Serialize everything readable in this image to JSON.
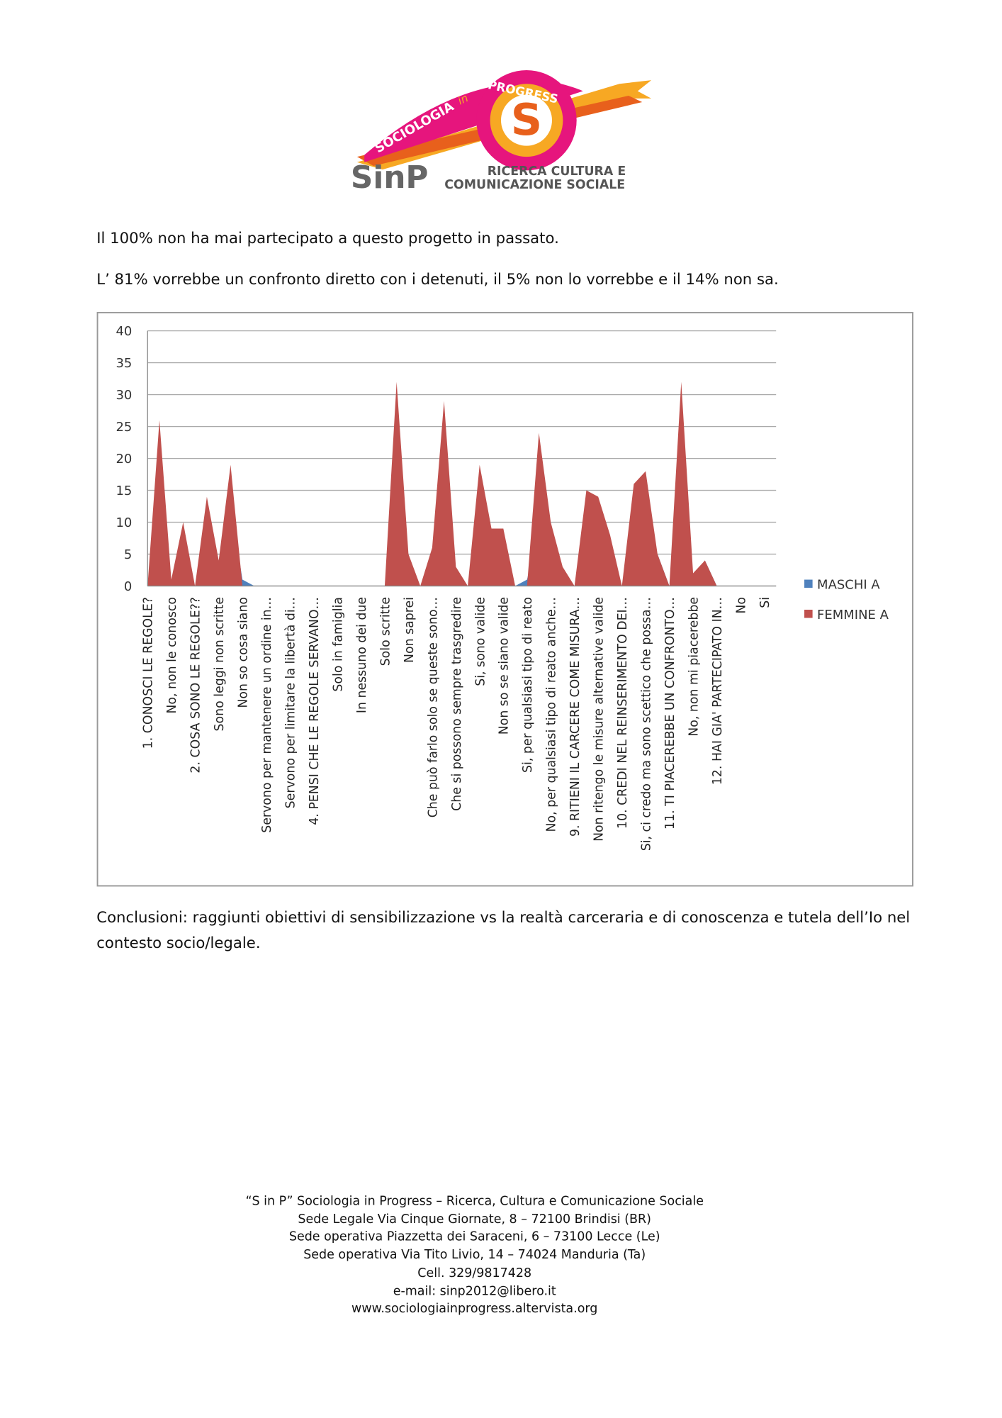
{
  "logo": {
    "arc_text": "SOCIOLOGIA",
    "arc_in": "in",
    "arc_text2": "PROGRESS",
    "letter": "S",
    "brand": "SinP",
    "tag1": "RICERCA CULTURA E",
    "tag2": "COMUNICAZIONE SOCIALE"
  },
  "paragraphs": [
    "Il 100% non ha mai partecipato a questo progetto in passato.",
    "L’ 81% vorrebbe un confronto diretto con i detenuti, il 5% non lo vorrebbe e il 14% non sa."
  ],
  "chart_data": {
    "type": "area",
    "categories": [
      "1. CONOSCI LE REGOLE?",
      null,
      "No, non le conosco",
      null,
      "2. COSA SONO LE REGOLE??",
      null,
      "Sono leggi non scritte",
      null,
      "Non so cosa siano",
      null,
      "Servono per mantenere un ordine in…",
      null,
      "Servono per limitare la libertà di…",
      null,
      "4. PENSI CHE LE REGOLE SERVANO…",
      null,
      "Solo in famiglia",
      null,
      "In nessuno dei due",
      null,
      "Solo scritte",
      null,
      "Non saprei",
      null,
      "Che può farlo solo se queste sono…",
      null,
      "Che si possono sempre trasgredire",
      null,
      "Si, sono valide",
      null,
      "Non so se siano valide",
      null,
      "Si, per qualsiasi tipo di reato",
      null,
      "No, per qualsiasi tipo di reato anche…",
      null,
      "9. RITIENI IL CARCERE COME MISURA…",
      null,
      "Non ritengo le misure alternative valide",
      null,
      "10. CREDI NEL REINSERIMENTO DEI…",
      null,
      "Si, ci credo ma sono scettico che possa…",
      null,
      "11. TI PIACEREBBE UN CONFRONTO…",
      null,
      "No, non mi piacerebbe",
      null,
      "12. HAI GIA' PARTECIPATO IN…",
      null,
      "No",
      null,
      "Si",
      null
    ],
    "series": [
      {
        "name": "MASCHI A",
        "color": "#4f81bd",
        "values": [
          0,
          0,
          0,
          0,
          0,
          0,
          0,
          13,
          1,
          0,
          0,
          0,
          0,
          0,
          0,
          0,
          0,
          0,
          0,
          0,
          0,
          0,
          0,
          0,
          0,
          0,
          0,
          0,
          0,
          0,
          0,
          0,
          1,
          9,
          0,
          0,
          0,
          0,
          0,
          0,
          0,
          0,
          0,
          5,
          0,
          0,
          1,
          4,
          0,
          0,
          0,
          0,
          0,
          0
        ]
      },
      {
        "name": "FEMMINE A",
        "color": "#c0504d",
        "values": [
          0,
          26,
          1,
          10,
          0,
          14,
          4,
          19,
          0,
          0,
          0,
          0,
          0,
          0,
          0,
          0,
          0,
          0,
          0,
          0,
          0,
          32,
          5,
          0,
          6,
          29,
          3,
          0,
          19,
          9,
          9,
          0,
          0,
          24,
          10,
          3,
          0,
          15,
          14,
          8,
          0,
          16,
          18,
          5,
          0,
          32,
          2,
          4,
          0,
          0,
          0,
          0,
          0,
          0
        ]
      }
    ],
    "ylim": [
      0,
      40
    ],
    "yticks": [
      0,
      5,
      10,
      15,
      20,
      25,
      30,
      35,
      40
    ],
    "grid": true,
    "legend": "right"
  },
  "conclusion": "Conclusioni: raggiunti obiettivi di sensibilizzazione vs la realtà carceraria e di conoscenza e tutela dell’Io nel contesto socio/legale.",
  "footer": [
    "“S in P” Sociologia in Progress – Ricerca, Cultura e Comunicazione Sociale",
    "Sede Legale Via Cinque Giornate, 8 – 72100 Brindisi (BR)",
    "Sede operativa Piazzetta dei Saraceni, 6 – 73100 Lecce (Le)",
    "Sede operativa Via Tito Livio, 14 – 74024 Manduria (Ta)",
    "Cell. 329/9817428",
    "e-mail: sinp2012@libero.it",
    "www.sociologiainprogress.altervista.org"
  ]
}
